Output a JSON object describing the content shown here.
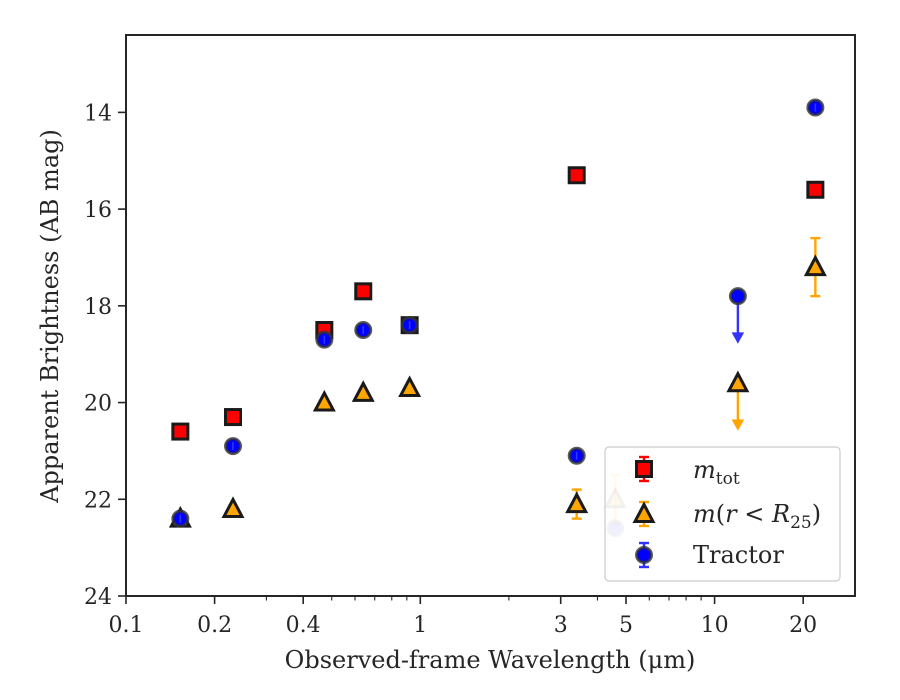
{
  "chart_data": {
    "type": "scatter",
    "title": "",
    "xlabel": "Observed-frame Wavelength (μm)",
    "ylabel": "Apparent Brightness (AB mag)",
    "xscale": "log",
    "xlim": [
      0.1,
      30
    ],
    "ylim": [
      24,
      12.4
    ],
    "y_inverted": true,
    "x_ticks": [
      {
        "value": 0.1,
        "label": "0.1"
      },
      {
        "value": 0.2,
        "label": "0.2"
      },
      {
        "value": 0.4,
        "label": "0.4"
      },
      {
        "value": 1,
        "label": "1"
      },
      {
        "value": 3,
        "label": "3"
      },
      {
        "value": 5,
        "label": "5"
      },
      {
        "value": 10,
        "label": "10"
      },
      {
        "value": 20,
        "label": "20"
      }
    ],
    "y_ticks": [
      {
        "value": 14,
        "label": "14"
      },
      {
        "value": 16,
        "label": "16"
      },
      {
        "value": 18,
        "label": "18"
      },
      {
        "value": 20,
        "label": "20"
      },
      {
        "value": 22,
        "label": "22"
      },
      {
        "value": 24,
        "label": "24"
      }
    ],
    "grid": false,
    "legend_position": "lower-right",
    "series": [
      {
        "name": "m_tot",
        "legend_label": "m_tot",
        "marker": "square",
        "color": "#ff0000",
        "edge_color": "#1a1a1a",
        "error_color": "#ff0000",
        "points": [
          {
            "x": 0.153,
            "y": 20.6
          },
          {
            "x": 0.231,
            "y": 20.3
          },
          {
            "x": 0.472,
            "y": 18.5
          },
          {
            "x": 0.64,
            "y": 17.7
          },
          {
            "x": 0.92,
            "y": 18.4
          },
          {
            "x": 3.4,
            "y": 15.3
          },
          {
            "x": 22.0,
            "y": 15.6
          }
        ]
      },
      {
        "name": "m(r < R25)",
        "legend_label": "m(r < R25)",
        "marker": "triangle",
        "color": "#ffa500",
        "edge_color": "#1a1a1a",
        "error_color": "#ffa500",
        "points": [
          {
            "x": 0.153,
            "y": 22.4
          },
          {
            "x": 0.231,
            "y": 22.2
          },
          {
            "x": 0.472,
            "y": 20.0
          },
          {
            "x": 0.64,
            "y": 19.8
          },
          {
            "x": 0.92,
            "y": 19.7
          },
          {
            "x": 3.4,
            "y": 22.1,
            "err": 0.3
          },
          {
            "x": 4.6,
            "y": 22.0,
            "err": 0.5,
            "faded": true
          },
          {
            "x": 12.0,
            "y": 19.6,
            "upper_limit": true
          },
          {
            "x": 22.0,
            "y": 17.2,
            "err": 0.6
          }
        ]
      },
      {
        "name": "Tractor",
        "legend_label": "Tractor",
        "marker": "circle",
        "color": "#0000ff",
        "edge_color": "#333333",
        "error_color": "#3333ff",
        "points": [
          {
            "x": 0.153,
            "y": 22.4
          },
          {
            "x": 0.231,
            "y": 20.9
          },
          {
            "x": 0.472,
            "y": 18.7
          },
          {
            "x": 0.64,
            "y": 18.5
          },
          {
            "x": 0.92,
            "y": 18.4
          },
          {
            "x": 3.4,
            "y": 21.1
          },
          {
            "x": 4.6,
            "y": 22.6,
            "faded": true
          },
          {
            "x": 12.0,
            "y": 17.8,
            "upper_limit": true
          },
          {
            "x": 22.0,
            "y": 13.9
          }
        ]
      }
    ]
  }
}
